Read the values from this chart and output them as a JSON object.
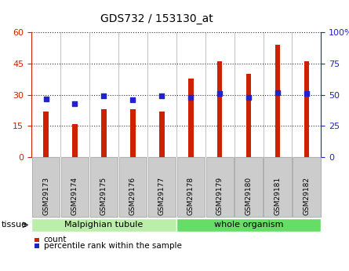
{
  "title": "GDS732 / 153130_at",
  "samples": [
    "GSM29173",
    "GSM29174",
    "GSM29175",
    "GSM29176",
    "GSM29177",
    "GSM29178",
    "GSM29179",
    "GSM29180",
    "GSM29181",
    "GSM29182"
  ],
  "counts": [
    22,
    16,
    23,
    23,
    22,
    38,
    46,
    40,
    54,
    46
  ],
  "percentiles": [
    47,
    43,
    49,
    46,
    49,
    48,
    51,
    48,
    52,
    51
  ],
  "ylim_left": [
    0,
    60
  ],
  "ylim_right": [
    0,
    100
  ],
  "yticks_left": [
    0,
    15,
    30,
    45,
    60
  ],
  "yticks_right": [
    0,
    25,
    50,
    75,
    100
  ],
  "bar_color": "#cc2200",
  "dot_color": "#2222cc",
  "tissue_groups": [
    {
      "label": "Malpighian tubule",
      "start": 0,
      "end": 5,
      "color": "#bbeeaa"
    },
    {
      "label": "whole organism",
      "start": 5,
      "end": 10,
      "color": "#66dd66"
    }
  ],
  "legend_count_label": "count",
  "legend_percentile_label": "percentile rank within the sample",
  "tissue_label": "tissue",
  "left_axis_color": "#cc2200",
  "right_axis_color": "#2222cc",
  "bar_width": 0.18,
  "grid_color": "#333333",
  "separator_color": "#aaaaaa",
  "label_box_color": "#cccccc",
  "label_box_edge": "#999999"
}
